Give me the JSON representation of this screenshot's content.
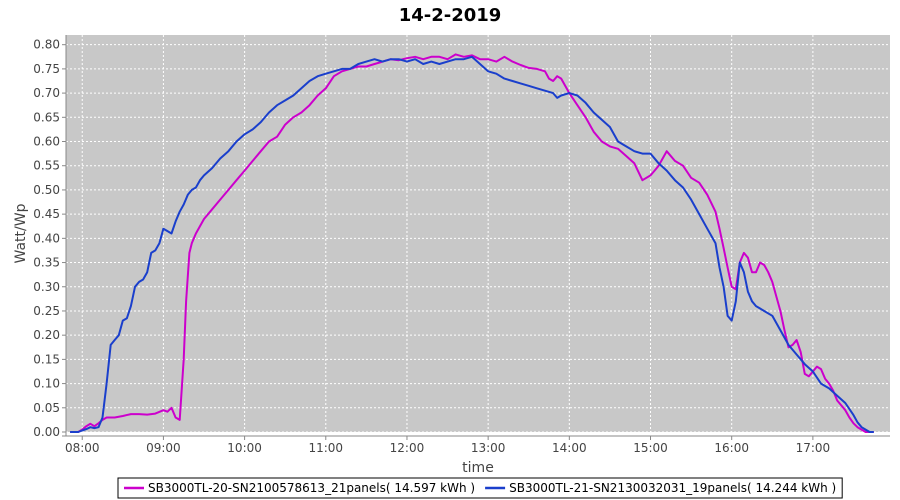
{
  "chart_data": {
    "type": "line",
    "title": "14-2-2019",
    "xlabel": "time",
    "ylabel": "Watt/Wp",
    "x_unit": "hour of day",
    "xlim": [
      7.8,
      17.95
    ],
    "ylim": [
      0,
      0.82
    ],
    "x_ticks": [
      8,
      9,
      10,
      11,
      12,
      13,
      14,
      15,
      16,
      17
    ],
    "x_tick_labels": [
      "08:00",
      "09:00",
      "10:00",
      "11:00",
      "12:00",
      "13:00",
      "14:00",
      "15:00",
      "16:00",
      "17:00"
    ],
    "y_ticks": [
      0.0,
      0.05,
      0.1,
      0.15,
      0.2,
      0.25,
      0.3,
      0.35,
      0.4,
      0.45,
      0.5,
      0.55,
      0.6,
      0.65,
      0.7,
      0.75,
      0.8
    ],
    "y_tick_labels": [
      "0.00",
      "0.05",
      "0.10",
      "0.15",
      "0.20",
      "0.25",
      "0.30",
      "0.35",
      "0.40",
      "0.45",
      "0.50",
      "0.55",
      "0.60",
      "0.65",
      "0.70",
      "0.75",
      "0.80"
    ],
    "grid": true,
    "legend_position": "bottom",
    "plot_background": "#c8c8c8",
    "series": [
      {
        "name": "SB3000TL-20-SN2100578613_21panels( 14.597 kWh )",
        "color": "#cc00cc",
        "x": [
          7.85,
          7.95,
          8.0,
          8.05,
          8.1,
          8.15,
          8.2,
          8.25,
          8.3,
          8.4,
          8.5,
          8.6,
          8.7,
          8.8,
          8.9,
          9.0,
          9.05,
          9.1,
          9.15,
          9.2,
          9.25,
          9.28,
          9.32,
          9.35,
          9.4,
          9.5,
          9.6,
          9.7,
          9.8,
          9.9,
          10.0,
          10.1,
          10.2,
          10.3,
          10.4,
          10.5,
          10.6,
          10.7,
          10.8,
          10.9,
          11.0,
          11.1,
          11.2,
          11.3,
          11.4,
          11.5,
          11.6,
          11.7,
          11.8,
          11.9,
          12.0,
          12.1,
          12.2,
          12.3,
          12.4,
          12.5,
          12.6,
          12.7,
          12.8,
          12.9,
          13.0,
          13.1,
          13.2,
          13.3,
          13.4,
          13.5,
          13.6,
          13.7,
          13.75,
          13.8,
          13.85,
          13.9,
          14.0,
          14.1,
          14.2,
          14.3,
          14.4,
          14.5,
          14.6,
          14.7,
          14.8,
          14.9,
          15.0,
          15.05,
          15.1,
          15.2,
          15.3,
          15.4,
          15.5,
          15.6,
          15.7,
          15.8,
          15.85,
          15.9,
          15.95,
          16.0,
          16.05,
          16.1,
          16.15,
          16.2,
          16.25,
          16.3,
          16.35,
          16.4,
          16.45,
          16.5,
          16.55,
          16.6,
          16.65,
          16.7,
          16.75,
          16.8,
          16.85,
          16.9,
          16.95,
          17.0,
          17.05,
          17.1,
          17.15,
          17.2,
          17.25,
          17.3,
          17.35,
          17.4,
          17.45,
          17.5,
          17.55,
          17.6,
          17.65,
          17.7,
          17.75
        ],
        "y": [
          0.0,
          0.0,
          0.005,
          0.012,
          0.017,
          0.012,
          0.018,
          0.025,
          0.03,
          0.03,
          0.033,
          0.037,
          0.037,
          0.036,
          0.038,
          0.045,
          0.042,
          0.05,
          0.03,
          0.025,
          0.15,
          0.27,
          0.37,
          0.39,
          0.41,
          0.44,
          0.46,
          0.48,
          0.5,
          0.52,
          0.54,
          0.56,
          0.58,
          0.6,
          0.61,
          0.635,
          0.65,
          0.66,
          0.675,
          0.695,
          0.71,
          0.735,
          0.745,
          0.75,
          0.755,
          0.755,
          0.76,
          0.765,
          0.77,
          0.768,
          0.772,
          0.775,
          0.77,
          0.775,
          0.775,
          0.77,
          0.78,
          0.775,
          0.778,
          0.77,
          0.77,
          0.765,
          0.775,
          0.765,
          0.758,
          0.752,
          0.75,
          0.745,
          0.73,
          0.725,
          0.735,
          0.73,
          0.7,
          0.675,
          0.65,
          0.62,
          0.6,
          0.59,
          0.585,
          0.57,
          0.555,
          0.52,
          0.53,
          0.54,
          0.55,
          0.58,
          0.56,
          0.55,
          0.525,
          0.515,
          0.49,
          0.455,
          0.42,
          0.38,
          0.34,
          0.3,
          0.295,
          0.35,
          0.37,
          0.36,
          0.33,
          0.33,
          0.35,
          0.345,
          0.33,
          0.31,
          0.28,
          0.25,
          0.21,
          0.175,
          0.18,
          0.19,
          0.165,
          0.12,
          0.115,
          0.125,
          0.135,
          0.13,
          0.11,
          0.1,
          0.085,
          0.065,
          0.055,
          0.045,
          0.03,
          0.018,
          0.01,
          0.005,
          0.0,
          0.0,
          0.0
        ]
      },
      {
        "name": "SB3000TL-21-SN2130032031_19panels( 14.244 kWh )",
        "color": "#1a3fcc",
        "x": [
          7.85,
          7.95,
          8.0,
          8.05,
          8.1,
          8.15,
          8.2,
          8.25,
          8.3,
          8.35,
          8.4,
          8.45,
          8.5,
          8.55,
          8.6,
          8.65,
          8.7,
          8.75,
          8.8,
          8.85,
          8.9,
          8.95,
          9.0,
          9.05,
          9.1,
          9.15,
          9.2,
          9.25,
          9.3,
          9.35,
          9.4,
          9.45,
          9.5,
          9.6,
          9.7,
          9.8,
          9.9,
          10.0,
          10.1,
          10.2,
          10.3,
          10.4,
          10.5,
          10.6,
          10.7,
          10.8,
          10.9,
          11.0,
          11.1,
          11.2,
          11.3,
          11.4,
          11.5,
          11.6,
          11.7,
          11.8,
          11.9,
          12.0,
          12.1,
          12.2,
          12.3,
          12.4,
          12.5,
          12.6,
          12.7,
          12.8,
          12.9,
          13.0,
          13.1,
          13.2,
          13.3,
          13.4,
          13.5,
          13.6,
          13.7,
          13.8,
          13.85,
          13.9,
          14.0,
          14.1,
          14.2,
          14.3,
          14.4,
          14.5,
          14.6,
          14.7,
          14.8,
          14.9,
          15.0,
          15.1,
          15.2,
          15.3,
          15.4,
          15.5,
          15.6,
          15.7,
          15.8,
          15.85,
          15.9,
          15.95,
          16.0,
          16.05,
          16.1,
          16.15,
          16.2,
          16.25,
          16.3,
          16.35,
          16.4,
          16.5,
          16.6,
          16.7,
          16.8,
          16.9,
          17.0,
          17.1,
          17.2,
          17.3,
          17.4,
          17.5,
          17.55,
          17.6,
          17.65,
          17.7,
          17.75
        ],
        "y": [
          0.0,
          0.0,
          0.003,
          0.006,
          0.01,
          0.008,
          0.01,
          0.03,
          0.1,
          0.18,
          0.19,
          0.2,
          0.23,
          0.235,
          0.26,
          0.3,
          0.31,
          0.315,
          0.33,
          0.37,
          0.375,
          0.39,
          0.42,
          0.415,
          0.41,
          0.435,
          0.455,
          0.47,
          0.49,
          0.5,
          0.505,
          0.52,
          0.53,
          0.545,
          0.565,
          0.58,
          0.6,
          0.615,
          0.625,
          0.64,
          0.66,
          0.675,
          0.685,
          0.695,
          0.71,
          0.725,
          0.735,
          0.74,
          0.745,
          0.75,
          0.75,
          0.76,
          0.765,
          0.77,
          0.765,
          0.77,
          0.77,
          0.765,
          0.77,
          0.76,
          0.765,
          0.76,
          0.765,
          0.77,
          0.77,
          0.775,
          0.76,
          0.745,
          0.74,
          0.73,
          0.725,
          0.72,
          0.715,
          0.71,
          0.705,
          0.7,
          0.69,
          0.695,
          0.7,
          0.695,
          0.68,
          0.66,
          0.645,
          0.63,
          0.6,
          0.59,
          0.58,
          0.575,
          0.575,
          0.555,
          0.54,
          0.52,
          0.505,
          0.48,
          0.45,
          0.42,
          0.39,
          0.34,
          0.3,
          0.24,
          0.23,
          0.27,
          0.35,
          0.33,
          0.29,
          0.27,
          0.26,
          0.255,
          0.25,
          0.24,
          0.21,
          0.18,
          0.16,
          0.14,
          0.125,
          0.1,
          0.09,
          0.075,
          0.06,
          0.035,
          0.02,
          0.01,
          0.005,
          0.0,
          0.0
        ]
      }
    ]
  }
}
